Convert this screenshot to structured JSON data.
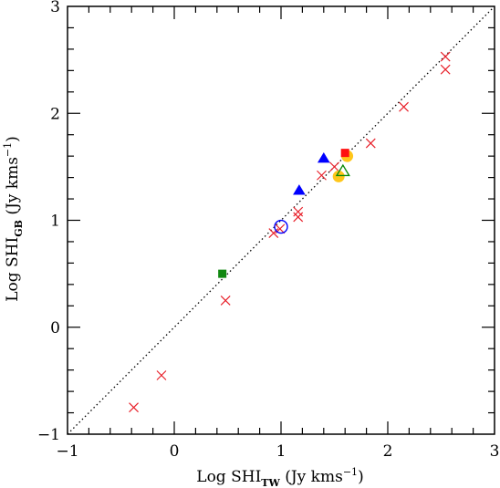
{
  "chart_data": {
    "type": "scatter",
    "xlabel": {
      "prefix": "Log SHI",
      "sub": "TW",
      "suffix": " (Jy kms",
      "sup": "−1",
      "end": ")"
    },
    "ylabel": {
      "prefix": "Log SHI",
      "sub": "GB",
      "suffix": " (Jy kms",
      "sup": "−1",
      "end": ")"
    },
    "xlim": [
      -1,
      3
    ],
    "ylim": [
      -1,
      3
    ],
    "xticks": [
      -1,
      0,
      1,
      2,
      3
    ],
    "yticks": [
      -1,
      0,
      1,
      2,
      3
    ],
    "x_tick_labels": [
      "−1",
      "0",
      "1",
      "2",
      "3"
    ],
    "y_tick_labels": [
      "−1",
      "0",
      "1",
      "2",
      "3"
    ],
    "reference_line": {
      "style": "dotted",
      "from": [
        -1,
        -1
      ],
      "to": [
        3,
        3
      ]
    },
    "series": [
      {
        "marker": "cross",
        "color": "#e8202a",
        "points": [
          [
            -0.38,
            -0.75
          ],
          [
            -0.12,
            -0.45
          ],
          [
            0.48,
            0.25
          ],
          [
            0.93,
            0.88
          ],
          [
            0.99,
            0.92
          ],
          [
            1.16,
            1.03
          ],
          [
            1.16,
            1.08
          ],
          [
            1.38,
            1.42
          ],
          [
            1.5,
            1.5
          ],
          [
            1.84,
            1.72
          ],
          [
            2.15,
            2.06
          ],
          [
            2.54,
            2.41
          ],
          [
            2.54,
            2.53
          ]
        ]
      },
      {
        "marker": "filled-circle",
        "color": "#ffc61a",
        "points": [
          [
            1.54,
            1.41
          ],
          [
            1.62,
            1.6
          ]
        ]
      },
      {
        "marker": "filled-triangle",
        "color": "#0000ff",
        "points": [
          [
            1.17,
            1.28
          ],
          [
            1.4,
            1.58
          ]
        ]
      },
      {
        "marker": "open-triangle",
        "color": "#0a8a0a",
        "points": [
          [
            1.58,
            1.46
          ]
        ]
      },
      {
        "marker": "filled-square",
        "color": "#ff1010",
        "points": [
          [
            1.6,
            1.63
          ]
        ]
      },
      {
        "marker": "filled-square",
        "color": "#118811",
        "points": [
          [
            0.45,
            0.5
          ]
        ]
      },
      {
        "marker": "open-circle",
        "color": "#0000ff",
        "points": [
          [
            1.0,
            0.94
          ]
        ]
      }
    ]
  }
}
